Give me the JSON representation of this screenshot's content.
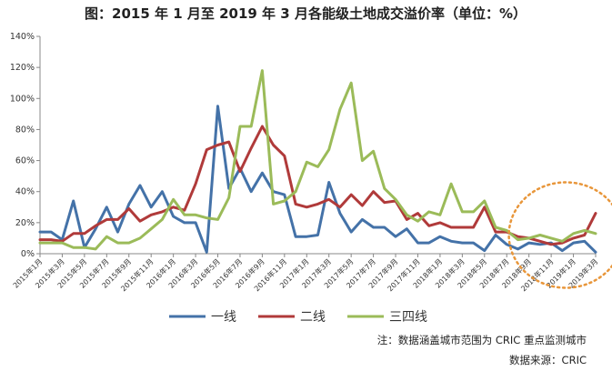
{
  "chart_data": {
    "type": "line",
    "title": "图：2015 年 1 月至 2019 年 3 月各能级土地成交溢价率（单位：%）",
    "xlabel": "",
    "ylabel": "",
    "ylim": [
      0,
      140
    ],
    "yticks": [
      "0%",
      "20%",
      "40%",
      "60%",
      "80%",
      "100%",
      "120%",
      "140%"
    ],
    "ytick_values": [
      0,
      20,
      40,
      60,
      80,
      100,
      120,
      140
    ],
    "x": [
      "2015年1月",
      "2015年2月",
      "2015年3月",
      "2015年4月",
      "2015年5月",
      "2015年6月",
      "2015年7月",
      "2015年8月",
      "2015年9月",
      "2015年10月",
      "2015年11月",
      "2015年12月",
      "2016年1月",
      "2016年2月",
      "2016年3月",
      "2016年4月",
      "2016年5月",
      "2016年6月",
      "2016年7月",
      "2016年8月",
      "2016年9月",
      "2016年10月",
      "2016年11月",
      "2016年12月",
      "2017年1月",
      "2017年2月",
      "2017年3月",
      "2017年4月",
      "2017年5月",
      "2017年6月",
      "2017年7月",
      "2017年8月",
      "2017年9月",
      "2017年10月",
      "2017年11月",
      "2017年12月",
      "2018年1月",
      "2018年2月",
      "2018年3月",
      "2018年4月",
      "2018年5月",
      "2018年6月",
      "2018年7月",
      "2018年8月",
      "2018年9月",
      "2018年10月",
      "2018年11月",
      "2018年12月",
      "2019年1月",
      "2019年2月",
      "2019年3月"
    ],
    "xtick_labels": [
      "2015年1月",
      "2015年3月",
      "2015年5月",
      "2015年7月",
      "2015年9月",
      "2015年11月",
      "2016年1月",
      "2016年3月",
      "2016年5月",
      "2016年7月",
      "2016年9月",
      "2016年11月",
      "2017年1月",
      "2017年3月",
      "2017年5月",
      "2017年7月",
      "2017年9月",
      "2017年11月",
      "2018年1月",
      "2018年3月",
      "2018年5月",
      "2018年7月",
      "2018年9月",
      "2018年11月",
      "2019年1月",
      "2019年3月"
    ],
    "series": [
      {
        "name": "一线",
        "color": "#4472A8",
        "values": [
          14,
          14,
          9,
          34,
          4,
          16,
          30,
          14,
          32,
          44,
          30,
          40,
          24,
          20,
          20,
          1,
          95,
          42,
          55,
          40,
          52,
          40,
          38,
          11,
          11,
          12,
          46,
          26,
          14,
          22,
          17,
          17,
          11,
          16,
          7,
          7,
          11,
          8,
          7,
          7,
          2,
          12,
          6,
          3,
          7,
          6,
          7,
          2,
          7,
          8,
          1
        ]
      },
      {
        "name": "二线",
        "color": "#B03A3A",
        "values": [
          9,
          9,
          8,
          13,
          13,
          18,
          22,
          22,
          29,
          21,
          25,
          27,
          30,
          28,
          45,
          67,
          70,
          72,
          53,
          68,
          82,
          70,
          63,
          32,
          30,
          32,
          35,
          30,
          38,
          31,
          40,
          33,
          34,
          22,
          26,
          18,
          20,
          17,
          17,
          17,
          30,
          14,
          14,
          11,
          10,
          8,
          6,
          7,
          10,
          12,
          26
        ]
      },
      {
        "name": "三四线",
        "color": "#9BBB59",
        "values": [
          7,
          7,
          7,
          4,
          4,
          3,
          11,
          7,
          7,
          10,
          16,
          22,
          35,
          25,
          25,
          23,
          22,
          36,
          82,
          82,
          118,
          32,
          34,
          40,
          59,
          56,
          67,
          93,
          110,
          60,
          66,
          42,
          35,
          25,
          21,
          27,
          25,
          45,
          27,
          27,
          34,
          17,
          15,
          9,
          10,
          12,
          10,
          8,
          13,
          15,
          13
        ]
      }
    ],
    "grid": false,
    "legend_position": "bottom",
    "annotation": "dashed-circle-highlight-recent-months"
  },
  "annotations": {
    "circle_color": "#E8963A"
  },
  "footer": {
    "note": "注：数据涵盖城市范围为 CRIC 重点监测城市",
    "source": "数据来源：CRIC"
  }
}
